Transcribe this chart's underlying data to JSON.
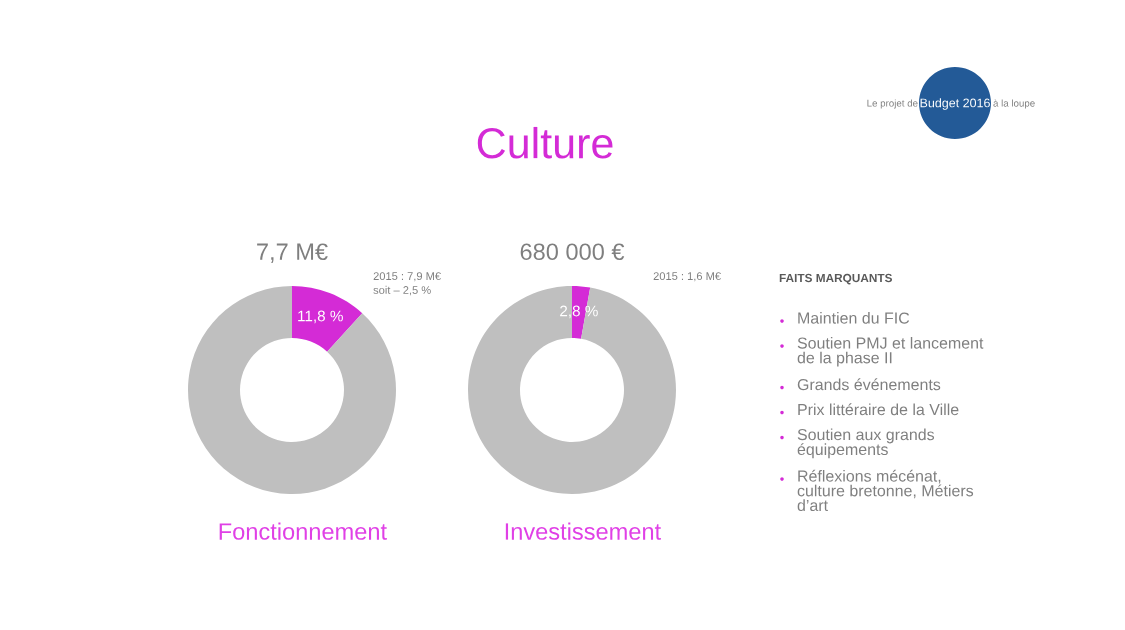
{
  "chart_data": [
    {
      "type": "other",
      "title": "Culture",
      "annotations": [
        "Le projet de",
        "Budget 2016",
        "à la loupe"
      ]
    },
    {
      "type": "donut",
      "title": "7,7 M€",
      "xlabel": "Fonctionnement",
      "categories": [
        null,
        null
      ],
      "values": [
        11.8,
        88.2
      ],
      "colors": [
        "#d42bd6",
        "#bfbfbf"
      ],
      "value_labels": [
        "11,8 %",
        null
      ],
      "annotations": [
        "2015 : 7,9 M€",
        "soit – 2,5 %"
      ]
    },
    {
      "type": "donut",
      "title": "680 000 €",
      "xlabel": "Investissement",
      "categories": [
        null,
        null
      ],
      "values": [
        2.8,
        97.2
      ],
      "colors": [
        "#d42bd6",
        "#bfbfbf"
      ],
      "value_labels": [
        "2,8 %",
        null
      ],
      "annotations": [
        "2015 : 1,6 M€"
      ]
    },
    {
      "type": "other",
      "title": "FAITS MARQUANTS",
      "annotations": [
        "Maintien du FIC",
        "Soutien PMJ et lancement\nde la phase II",
        "Grands événements",
        "Prix littéraire de la Ville",
        "Soutien aux grands\néquipements",
        "Réflexions mécénat,\nculture bretonne, Métiers\nd’art"
      ]
    }
  ]
}
